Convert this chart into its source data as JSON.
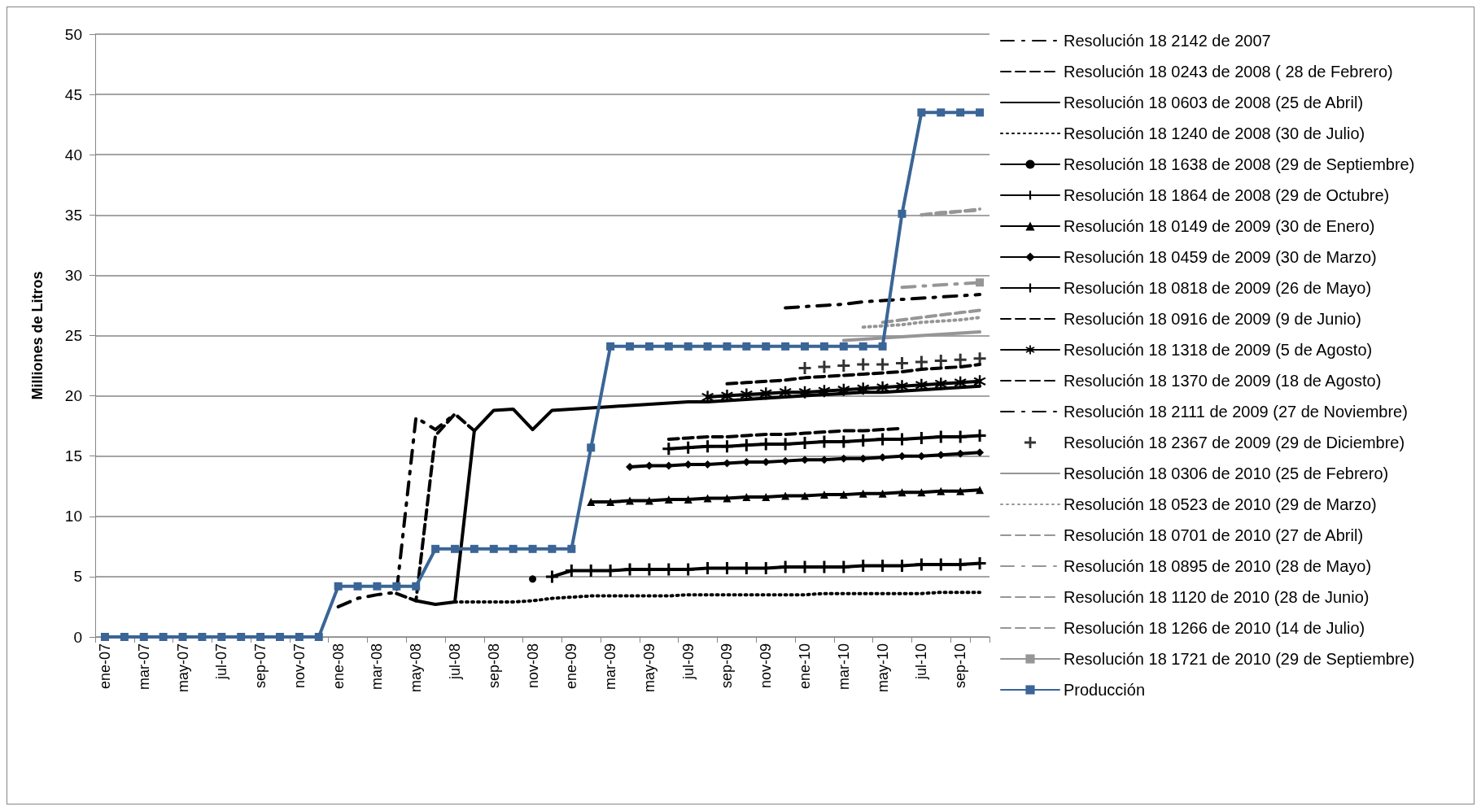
{
  "chart_data": {
    "type": "line",
    "ylabel": "Milliones de Litros",
    "categories": [
      "ene-07",
      null,
      "mar-07",
      null,
      "may-07",
      null,
      "jul-07",
      null,
      "sep-07",
      null,
      "nov-07",
      null,
      "ene-08",
      null,
      "mar-08",
      null,
      "may-08",
      null,
      "jul-08",
      null,
      "sep-08",
      null,
      "nov-08",
      null,
      "ene-09",
      null,
      "mar-09",
      null,
      "may-09",
      null,
      "jul-09",
      null,
      "sep-09",
      null,
      "nov-09",
      null,
      "ene-10",
      null,
      "mar-10",
      null,
      "may-10",
      null,
      "jul-10",
      null,
      "sep-10",
      null
    ],
    "ylim": [
      0,
      50
    ],
    "yticks": [
      0,
      5,
      10,
      15,
      20,
      25,
      30,
      35,
      40,
      45,
      50
    ],
    "grid": "y",
    "legend": "right",
    "series": [
      {
        "name": "Resolución 18 2142 de 2007",
        "color": "#000000",
        "line_style": "dashdot",
        "marker": "none",
        "values": [
          null,
          null,
          null,
          null,
          null,
          null,
          null,
          null,
          null,
          null,
          null,
          null,
          2.5,
          3.2,
          3.5,
          3.7,
          18.2,
          17.2,
          18.5,
          null,
          null,
          null,
          null,
          null,
          null,
          null,
          null,
          null,
          null,
          null,
          null,
          null,
          null,
          null,
          null,
          null,
          null,
          null,
          null,
          null,
          null,
          null,
          null,
          null,
          null,
          null
        ]
      },
      {
        "name": "Resolución 18 0243 de 2008 ( 28 de Febrero)",
        "color": "#000000",
        "line_style": "dashed",
        "marker": "none",
        "values": [
          null,
          null,
          null,
          null,
          null,
          null,
          null,
          null,
          null,
          null,
          null,
          null,
          null,
          null,
          null,
          3.6,
          3.0,
          16.7,
          18.5,
          17.1,
          null,
          null,
          null,
          null,
          null,
          null,
          null,
          null,
          null,
          null,
          null,
          null,
          null,
          null,
          null,
          null,
          null,
          null,
          null,
          null,
          null,
          null,
          null,
          null,
          null,
          null
        ]
      },
      {
        "name": "Resolución 18 0603 de 2008 (25 de Abril)",
        "color": "#000000",
        "line_style": "solid",
        "marker": "none",
        "values": [
          null,
          null,
          null,
          null,
          null,
          null,
          null,
          null,
          null,
          null,
          null,
          null,
          null,
          null,
          null,
          null,
          3.0,
          2.7,
          2.9,
          17.1,
          18.8,
          18.9,
          17.2,
          18.8,
          18.9,
          19.0,
          19.1,
          19.2,
          19.3,
          19.4,
          19.5,
          19.5,
          19.6,
          19.7,
          19.8,
          19.9,
          20.0,
          20.1,
          20.2,
          20.3,
          20.3,
          20.4,
          20.5,
          20.6,
          20.7,
          20.8
        ]
      },
      {
        "name": "Resolución 18 1240 de 2008 (30 de Julio)",
        "color": "#000000",
        "line_style": "dotted",
        "marker": "none",
        "values": [
          null,
          null,
          null,
          null,
          null,
          null,
          null,
          null,
          null,
          null,
          null,
          null,
          null,
          null,
          null,
          null,
          null,
          null,
          2.9,
          2.9,
          2.9,
          2.9,
          3.0,
          3.2,
          3.3,
          3.4,
          3.4,
          3.4,
          3.4,
          3.4,
          3.5,
          3.5,
          3.5,
          3.5,
          3.5,
          3.5,
          3.5,
          3.6,
          3.6,
          3.6,
          3.6,
          3.6,
          3.6,
          3.7,
          3.7,
          3.7
        ]
      },
      {
        "name": "Resolución 18 1638 de 2008 (29 de Septiembre)",
        "color": "#000000",
        "line_style": "solid",
        "marker": "circle",
        "values": [
          null,
          null,
          null,
          null,
          null,
          null,
          null,
          null,
          null,
          null,
          null,
          null,
          null,
          null,
          null,
          null,
          null,
          null,
          null,
          null,
          null,
          null,
          4.8,
          null,
          null,
          null,
          null,
          null,
          null,
          null,
          null,
          null,
          null,
          null,
          null,
          null,
          null,
          null,
          null,
          null,
          null,
          null,
          null,
          null,
          null,
          null
        ]
      },
      {
        "name": "Resolución 18 1864 de 2008 (29 de Octubre)",
        "color": "#000000",
        "line_style": "solid",
        "marker": "cross",
        "values": [
          null,
          null,
          null,
          null,
          null,
          null,
          null,
          null,
          null,
          null,
          null,
          null,
          null,
          null,
          null,
          null,
          null,
          null,
          null,
          null,
          null,
          null,
          null,
          5.0,
          5.5,
          5.5,
          5.5,
          5.6,
          5.6,
          5.6,
          5.6,
          5.7,
          5.7,
          5.7,
          5.7,
          5.8,
          5.8,
          5.8,
          5.8,
          5.9,
          5.9,
          5.9,
          6.0,
          6.0,
          6.0,
          6.1
        ]
      },
      {
        "name": "Resolución 18 0149 de 2009 (30 de Enero)",
        "color": "#000000",
        "line_style": "solid",
        "marker": "triangle",
        "values": [
          null,
          null,
          null,
          null,
          null,
          null,
          null,
          null,
          null,
          null,
          null,
          null,
          null,
          null,
          null,
          null,
          null,
          null,
          null,
          null,
          null,
          null,
          null,
          null,
          null,
          11.2,
          11.2,
          11.3,
          11.3,
          11.4,
          11.4,
          11.5,
          11.5,
          11.6,
          11.6,
          11.7,
          11.7,
          11.8,
          11.8,
          11.9,
          11.9,
          12.0,
          12.0,
          12.1,
          12.1,
          12.2
        ]
      },
      {
        "name": "Resolución 18 0459 de 2009 (30 de Marzo)",
        "color": "#000000",
        "line_style": "solid",
        "marker": "diamond",
        "values": [
          null,
          null,
          null,
          null,
          null,
          null,
          null,
          null,
          null,
          null,
          null,
          null,
          null,
          null,
          null,
          null,
          null,
          null,
          null,
          null,
          null,
          null,
          null,
          null,
          null,
          null,
          null,
          14.1,
          14.2,
          14.2,
          14.3,
          14.3,
          14.4,
          14.5,
          14.5,
          14.6,
          14.7,
          14.7,
          14.8,
          14.8,
          14.9,
          15.0,
          15.0,
          15.1,
          15.2,
          15.3
        ]
      },
      {
        "name": "Resolución 18 0818 de 2009 (26 de Mayo)",
        "color": "#000000",
        "line_style": "solid",
        "marker": "cross",
        "values": [
          null,
          null,
          null,
          null,
          null,
          null,
          null,
          null,
          null,
          null,
          null,
          null,
          null,
          null,
          null,
          null,
          null,
          null,
          null,
          null,
          null,
          null,
          null,
          null,
          null,
          null,
          null,
          null,
          null,
          15.6,
          15.7,
          15.8,
          15.8,
          15.9,
          16.0,
          16.0,
          16.1,
          16.2,
          16.2,
          16.3,
          16.4,
          16.4,
          16.5,
          16.6,
          16.6,
          16.7
        ]
      },
      {
        "name": "Resolución 18 0916 de 2009 (9 de Junio)",
        "color": "#000000",
        "line_style": "dashed",
        "marker": "none",
        "values": [
          null,
          null,
          null,
          null,
          null,
          null,
          null,
          null,
          null,
          null,
          null,
          null,
          null,
          null,
          null,
          null,
          null,
          null,
          null,
          null,
          null,
          null,
          null,
          null,
          null,
          null,
          null,
          null,
          null,
          16.4,
          16.5,
          16.6,
          16.6,
          16.7,
          16.8,
          16.8,
          16.9,
          17.0,
          17.1,
          17.1,
          17.2,
          17.3,
          null,
          null,
          null,
          null
        ]
      },
      {
        "name": "Resolución 18 1318 de 2009 (5 de Agosto)",
        "color": "#000000",
        "line_style": "solid",
        "marker": "star",
        "values": [
          null,
          null,
          null,
          null,
          null,
          null,
          null,
          null,
          null,
          null,
          null,
          null,
          null,
          null,
          null,
          null,
          null,
          null,
          null,
          null,
          null,
          null,
          null,
          null,
          null,
          null,
          null,
          null,
          null,
          null,
          null,
          19.9,
          20.0,
          20.1,
          20.2,
          20.3,
          20.3,
          20.4,
          20.5,
          20.6,
          20.7,
          20.8,
          20.9,
          21.0,
          21.1,
          21.2
        ]
      },
      {
        "name": "Resolución 18 1370 de 2009 (18 de Agosto)",
        "color": "#000000",
        "line_style": "dashed",
        "marker": "none",
        "values": [
          null,
          null,
          null,
          null,
          null,
          null,
          null,
          null,
          null,
          null,
          null,
          null,
          null,
          null,
          null,
          null,
          null,
          null,
          null,
          null,
          null,
          null,
          null,
          null,
          null,
          null,
          null,
          null,
          null,
          null,
          null,
          null,
          21.0,
          21.1,
          21.2,
          21.3,
          21.5,
          21.6,
          21.7,
          21.8,
          21.9,
          22.0,
          22.2,
          22.3,
          22.4,
          22.6
        ]
      },
      {
        "name": "Resolución 18 2111 de 2009 (27 de Noviembre)",
        "color": "#000000",
        "line_style": "dashdot",
        "marker": "none",
        "values": [
          null,
          null,
          null,
          null,
          null,
          null,
          null,
          null,
          null,
          null,
          null,
          null,
          null,
          null,
          null,
          null,
          null,
          null,
          null,
          null,
          null,
          null,
          null,
          null,
          null,
          null,
          null,
          null,
          null,
          null,
          null,
          null,
          null,
          null,
          null,
          27.3,
          27.4,
          27.5,
          27.6,
          27.8,
          27.9,
          28.0,
          28.1,
          28.2,
          28.3,
          28.4
        ]
      },
      {
        "name": "Resolución 18 2367 de 2009 (29 de Diciembre)",
        "type": "scatter",
        "color": "#000000",
        "marker": "cross",
        "values": [
          null,
          null,
          null,
          null,
          null,
          null,
          null,
          null,
          null,
          null,
          null,
          null,
          null,
          null,
          null,
          null,
          null,
          null,
          null,
          null,
          null,
          null,
          null,
          null,
          null,
          null,
          null,
          null,
          null,
          null,
          null,
          null,
          null,
          null,
          null,
          null,
          22.3,
          22.4,
          22.5,
          22.6,
          22.6,
          22.7,
          22.8,
          22.9,
          23.0,
          23.1
        ]
      },
      {
        "name": "Resolución 18 0306 de 2010 (25 de Febrero)",
        "color": "#969696",
        "line_style": "solid",
        "marker": "none",
        "values": [
          null,
          null,
          null,
          null,
          null,
          null,
          null,
          null,
          null,
          null,
          null,
          null,
          null,
          null,
          null,
          null,
          null,
          null,
          null,
          null,
          null,
          null,
          null,
          null,
          null,
          null,
          null,
          null,
          null,
          null,
          null,
          null,
          null,
          null,
          null,
          null,
          null,
          null,
          24.6,
          24.7,
          24.8,
          24.9,
          25.0,
          25.1,
          25.2,
          25.3
        ]
      },
      {
        "name": "Resolución 18 0523 de 2010 (29 de Marzo)",
        "color": "#969696",
        "line_style": "dotted",
        "marker": "none",
        "values": [
          null,
          null,
          null,
          null,
          null,
          null,
          null,
          null,
          null,
          null,
          null,
          null,
          null,
          null,
          null,
          null,
          null,
          null,
          null,
          null,
          null,
          null,
          null,
          null,
          null,
          null,
          null,
          null,
          null,
          null,
          null,
          null,
          null,
          null,
          null,
          null,
          null,
          null,
          null,
          25.7,
          25.8,
          25.9,
          26.1,
          26.2,
          26.3,
          26.5
        ]
      },
      {
        "name": "Resolución 18 0701 de 2010 (27 de Abril)",
        "color": "#969696",
        "line_style": "dashed",
        "marker": "none",
        "values": [
          null,
          null,
          null,
          null,
          null,
          null,
          null,
          null,
          null,
          null,
          null,
          null,
          null,
          null,
          null,
          null,
          null,
          null,
          null,
          null,
          null,
          null,
          null,
          null,
          null,
          null,
          null,
          null,
          null,
          null,
          null,
          null,
          null,
          null,
          null,
          null,
          null,
          null,
          null,
          null,
          26.1,
          26.3,
          26.5,
          26.7,
          26.9,
          27.1
        ]
      },
      {
        "name": "Resolución 18 0895 de 2010 (28 de Mayo)",
        "color": "#969696",
        "line_style": "dashdot",
        "marker": "none",
        "values": [
          null,
          null,
          null,
          null,
          null,
          null,
          null,
          null,
          null,
          null,
          null,
          null,
          null,
          null,
          null,
          null,
          null,
          null,
          null,
          null,
          null,
          null,
          null,
          null,
          null,
          null,
          null,
          null,
          null,
          null,
          null,
          null,
          null,
          null,
          null,
          null,
          null,
          null,
          null,
          null,
          null,
          29.0,
          29.1,
          29.2,
          29.3,
          29.4
        ]
      },
      {
        "name": "Resolución 18 1120 de 2010 (28 de Junio)",
        "color": "#969696",
        "line_style": "dashed",
        "marker": "none",
        "values": [
          null,
          null,
          null,
          null,
          null,
          null,
          null,
          null,
          null,
          null,
          null,
          null,
          null,
          null,
          null,
          null,
          null,
          null,
          null,
          null,
          null,
          null,
          null,
          null,
          null,
          null,
          null,
          null,
          null,
          null,
          null,
          null,
          null,
          null,
          null,
          null,
          null,
          null,
          null,
          null,
          null,
          null,
          35.0,
          35.2,
          35.3,
          35.5
        ]
      },
      {
        "name": "Resolución 18 1266 de 2010 (14 de Julio)",
        "color": "#969696",
        "line_style": "dashed",
        "marker": "none",
        "values": [
          null,
          null,
          null,
          null,
          null,
          null,
          null,
          null,
          null,
          null,
          null,
          null,
          null,
          null,
          null,
          null,
          null,
          null,
          null,
          null,
          null,
          null,
          null,
          null,
          null,
          null,
          null,
          null,
          null,
          null,
          null,
          null,
          null,
          null,
          null,
          null,
          null,
          null,
          null,
          null,
          null,
          null,
          35.0,
          35.1,
          35.3,
          35.4
        ]
      },
      {
        "name": "Resolución 18 1721 de 2010 (29 de Septiembre)",
        "color": "#969696",
        "line_style": "solid",
        "marker": "square",
        "values": [
          null,
          null,
          null,
          null,
          null,
          null,
          null,
          null,
          null,
          null,
          null,
          null,
          null,
          null,
          null,
          null,
          null,
          null,
          null,
          null,
          null,
          null,
          null,
          null,
          null,
          null,
          null,
          null,
          null,
          null,
          null,
          null,
          null,
          null,
          null,
          null,
          null,
          null,
          null,
          null,
          null,
          null,
          null,
          null,
          null,
          29.4
        ]
      },
      {
        "name": "Producción",
        "color": "#3a6596",
        "line_style": "solid",
        "marker": "square",
        "values": [
          0,
          0,
          0,
          0,
          0,
          0,
          0,
          0,
          0,
          0,
          0,
          0,
          4.2,
          4.2,
          4.2,
          4.2,
          4.2,
          7.3,
          7.3,
          7.3,
          7.3,
          7.3,
          7.3,
          7.3,
          7.3,
          15.7,
          24.1,
          24.1,
          24.1,
          24.1,
          24.1,
          24.1,
          24.1,
          24.1,
          24.1,
          24.1,
          24.1,
          24.1,
          24.1,
          24.1,
          24.1,
          35.1,
          43.5,
          43.5,
          43.5,
          43.5
        ]
      }
    ]
  }
}
